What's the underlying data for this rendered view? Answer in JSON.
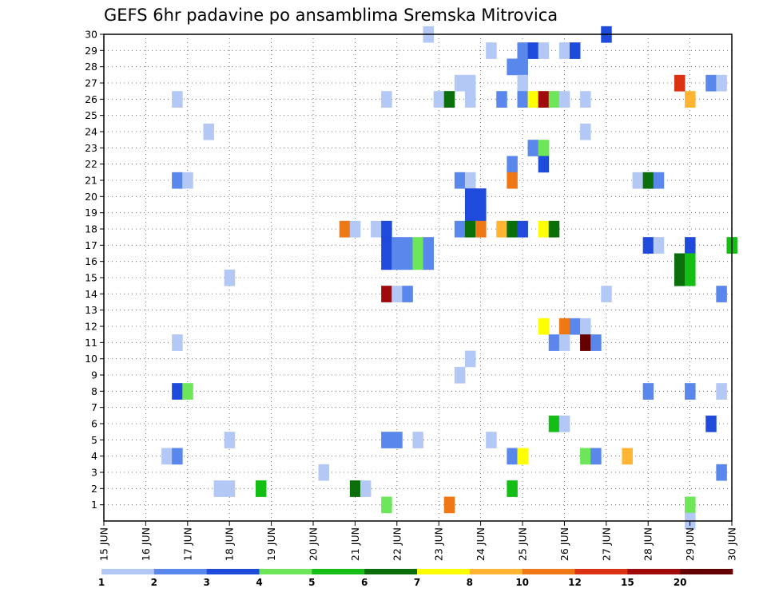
{
  "chart_data": {
    "type": "heatmap",
    "title": "GEFS 6hr padavine po ansamblima Sremska Mitrovica",
    "x_tick_labels": [
      "15 JUN",
      "16 JUN",
      "17 JUN",
      "18 JUN",
      "19 JUN",
      "20 JUN",
      "21 JUN",
      "22 JUN",
      "23 JUN",
      "24 JUN",
      "25 JUN",
      "26 JUN",
      "27 JUN",
      "28 JUN",
      "29 JUN",
      "30 JUN"
    ],
    "x_range_days": [
      15,
      30
    ],
    "y_range": [
      0,
      30
    ],
    "y_ticks": [
      1,
      2,
      3,
      4,
      5,
      6,
      7,
      8,
      9,
      10,
      11,
      12,
      13,
      14,
      15,
      16,
      17,
      18,
      19,
      20,
      21,
      22,
      23,
      24,
      25,
      26,
      27,
      28,
      29,
      30
    ],
    "grid": "dotted",
    "legend_thresholds": [
      "1",
      "2",
      "3",
      "4",
      "5",
      "6",
      "7",
      "8",
      "10",
      "12",
      "15",
      "20"
    ],
    "legend_colors": [
      "#b4c8f5",
      "#5a87eb",
      "#1e4bdc",
      "#6ee65a",
      "#14be14",
      "#0a6e0a",
      "#ffff00",
      "#ffb432",
      "#f07814",
      "#dc3214",
      "#a00a0a",
      "#640000"
    ],
    "cell_width_hours": 6,
    "points": [
      {
        "member": 30,
        "day": 22.75,
        "level": 0
      },
      {
        "member": 30,
        "day": 27,
        "level": 2
      },
      {
        "member": 29,
        "day": 24.25,
        "level": 0
      },
      {
        "member": 29,
        "day": 25,
        "level": 1
      },
      {
        "member": 29,
        "day": 25.25,
        "level": 2
      },
      {
        "member": 29,
        "day": 25.5,
        "level": 0
      },
      {
        "member": 29,
        "day": 26,
        "level": 0
      },
      {
        "member": 29,
        "day": 26.25,
        "level": 2
      },
      {
        "member": 28,
        "day": 24.75,
        "level": 1
      },
      {
        "member": 28,
        "day": 25,
        "level": 1
      },
      {
        "member": 27,
        "day": 23.5,
        "level": 0
      },
      {
        "member": 27,
        "day": 23.75,
        "level": 0
      },
      {
        "member": 27,
        "day": 25,
        "level": 0
      },
      {
        "member": 27,
        "day": 28.75,
        "level": 9
      },
      {
        "member": 27,
        "day": 29.5,
        "level": 1
      },
      {
        "member": 27,
        "day": 29.75,
        "level": 0
      },
      {
        "member": 26,
        "day": 16.75,
        "level": 0
      },
      {
        "member": 26,
        "day": 21.75,
        "level": 0
      },
      {
        "member": 26,
        "day": 23,
        "level": 0
      },
      {
        "member": 26,
        "day": 23.25,
        "level": 5
      },
      {
        "member": 26,
        "day": 23.75,
        "level": 0
      },
      {
        "member": 26,
        "day": 24.5,
        "level": 1
      },
      {
        "member": 26,
        "day": 25,
        "level": 1
      },
      {
        "member": 26,
        "day": 25.25,
        "level": 6
      },
      {
        "member": 26,
        "day": 25.5,
        "level": 10
      },
      {
        "member": 26,
        "day": 25.75,
        "level": 3
      },
      {
        "member": 26,
        "day": 26,
        "level": 0
      },
      {
        "member": 26,
        "day": 26.5,
        "level": 0
      },
      {
        "member": 26,
        "day": 29,
        "level": 7
      },
      {
        "member": 24,
        "day": 17.5,
        "level": 0
      },
      {
        "member": 24,
        "day": 26.5,
        "level": 0
      },
      {
        "member": 23,
        "day": 25.25,
        "level": 1
      },
      {
        "member": 23,
        "day": 25.5,
        "level": 3
      },
      {
        "member": 22,
        "day": 24.75,
        "level": 1
      },
      {
        "member": 22,
        "day": 25.5,
        "level": 2
      },
      {
        "member": 21,
        "day": 16.75,
        "level": 1
      },
      {
        "member": 21,
        "day": 17,
        "level": 0
      },
      {
        "member": 21,
        "day": 23.5,
        "level": 1
      },
      {
        "member": 21,
        "day": 23.75,
        "level": 0
      },
      {
        "member": 21,
        "day": 24.75,
        "level": 8
      },
      {
        "member": 21,
        "day": 27.75,
        "level": 0
      },
      {
        "member": 21,
        "day": 28,
        "level": 5
      },
      {
        "member": 21,
        "day": 28.25,
        "level": 1
      },
      {
        "member": 20,
        "day": 23.75,
        "level": 2
      },
      {
        "member": 20,
        "day": 24,
        "level": 2
      },
      {
        "member": 19,
        "day": 23.75,
        "level": 2
      },
      {
        "member": 19,
        "day": 24,
        "level": 2
      },
      {
        "member": 18,
        "day": 20.75,
        "level": 8
      },
      {
        "member": 18,
        "day": 21,
        "level": 0
      },
      {
        "member": 18,
        "day": 21.5,
        "level": 0
      },
      {
        "member": 18,
        "day": 21.75,
        "level": 2
      },
      {
        "member": 18,
        "day": 23.5,
        "level": 1
      },
      {
        "member": 18,
        "day": 23.75,
        "level": 5
      },
      {
        "member": 18,
        "day": 24,
        "level": 8
      },
      {
        "member": 18,
        "day": 24.5,
        "level": 7
      },
      {
        "member": 18,
        "day": 24.75,
        "level": 5
      },
      {
        "member": 18,
        "day": 25,
        "level": 2
      },
      {
        "member": 18,
        "day": 25.5,
        "level": 6
      },
      {
        "member": 18,
        "day": 25.75,
        "level": 5
      },
      {
        "member": 17,
        "day": 21.75,
        "level": 2
      },
      {
        "member": 17,
        "day": 22,
        "level": 1
      },
      {
        "member": 17,
        "day": 22.25,
        "level": 1
      },
      {
        "member": 17,
        "day": 22.5,
        "level": 3
      },
      {
        "member": 17,
        "day": 22.75,
        "level": 1
      },
      {
        "member": 17,
        "day": 28,
        "level": 2
      },
      {
        "member": 17,
        "day": 28.25,
        "level": 0
      },
      {
        "member": 17,
        "day": 29,
        "level": 2
      },
      {
        "member": 17,
        "day": 30,
        "level": 4
      },
      {
        "member": 16,
        "day": 21.75,
        "level": 2
      },
      {
        "member": 16,
        "day": 22,
        "level": 1
      },
      {
        "member": 16,
        "day": 22.25,
        "level": 1
      },
      {
        "member": 16,
        "day": 22.5,
        "level": 3
      },
      {
        "member": 16,
        "day": 22.75,
        "level": 1
      },
      {
        "member": 16,
        "day": 28.75,
        "level": 5
      },
      {
        "member": 16,
        "day": 29,
        "level": 4
      },
      {
        "member": 15,
        "day": 18,
        "level": 0
      },
      {
        "member": 15,
        "day": 28.75,
        "level": 5
      },
      {
        "member": 15,
        "day": 29,
        "level": 4
      },
      {
        "member": 14,
        "day": 21.75,
        "level": 10
      },
      {
        "member": 14,
        "day": 22,
        "level": 0
      },
      {
        "member": 14,
        "day": 22.25,
        "level": 1
      },
      {
        "member": 14,
        "day": 27,
        "level": 0
      },
      {
        "member": 14,
        "day": 29.75,
        "level": 1
      },
      {
        "member": 12,
        "day": 25.5,
        "level": 6
      },
      {
        "member": 12,
        "day": 26,
        "level": 8
      },
      {
        "member": 12,
        "day": 26.25,
        "level": 1
      },
      {
        "member": 12,
        "day": 26.5,
        "level": 0
      },
      {
        "member": 11,
        "day": 16.75,
        "level": 0
      },
      {
        "member": 11,
        "day": 25.75,
        "level": 1
      },
      {
        "member": 11,
        "day": 26,
        "level": 0
      },
      {
        "member": 11,
        "day": 26.5,
        "level": 11
      },
      {
        "member": 11,
        "day": 26.75,
        "level": 1
      },
      {
        "member": 10,
        "day": 23.75,
        "level": 0
      },
      {
        "member": 9,
        "day": 23.5,
        "level": 0
      },
      {
        "member": 8,
        "day": 16.75,
        "level": 2
      },
      {
        "member": 8,
        "day": 17,
        "level": 3
      },
      {
        "member": 8,
        "day": 28,
        "level": 1
      },
      {
        "member": 8,
        "day": 29,
        "level": 1
      },
      {
        "member": 8,
        "day": 29.75,
        "level": 0
      },
      {
        "member": 6,
        "day": 25.75,
        "level": 4
      },
      {
        "member": 6,
        "day": 26,
        "level": 0
      },
      {
        "member": 6,
        "day": 29.5,
        "level": 2
      },
      {
        "member": 5,
        "day": 18,
        "level": 0
      },
      {
        "member": 5,
        "day": 21.75,
        "level": 1
      },
      {
        "member": 5,
        "day": 22,
        "level": 1
      },
      {
        "member": 5,
        "day": 22.5,
        "level": 0
      },
      {
        "member": 5,
        "day": 24.25,
        "level": 0
      },
      {
        "member": 4,
        "day": 16.5,
        "level": 0
      },
      {
        "member": 4,
        "day": 16.75,
        "level": 1
      },
      {
        "member": 4,
        "day": 24.75,
        "level": 1
      },
      {
        "member": 4,
        "day": 25,
        "level": 6
      },
      {
        "member": 4,
        "day": 26.5,
        "level": 3
      },
      {
        "member": 4,
        "day": 26.75,
        "level": 1
      },
      {
        "member": 4,
        "day": 27.5,
        "level": 7
      },
      {
        "member": 3,
        "day": 20.25,
        "level": 0
      },
      {
        "member": 3,
        "day": 29.75,
        "level": 1
      },
      {
        "member": 2,
        "day": 17.75,
        "level": 0
      },
      {
        "member": 2,
        "day": 18,
        "level": 0
      },
      {
        "member": 2,
        "day": 18.75,
        "level": 4
      },
      {
        "member": 2,
        "day": 21,
        "level": 5
      },
      {
        "member": 2,
        "day": 21.25,
        "level": 0
      },
      {
        "member": 2,
        "day": 24.75,
        "level": 4
      },
      {
        "member": 1,
        "day": 21.75,
        "level": 3
      },
      {
        "member": 1,
        "day": 23.25,
        "level": 8
      },
      {
        "member": 1,
        "day": 29,
        "level": 3
      },
      {
        "member": 0,
        "day": 29,
        "level": 0
      }
    ]
  }
}
